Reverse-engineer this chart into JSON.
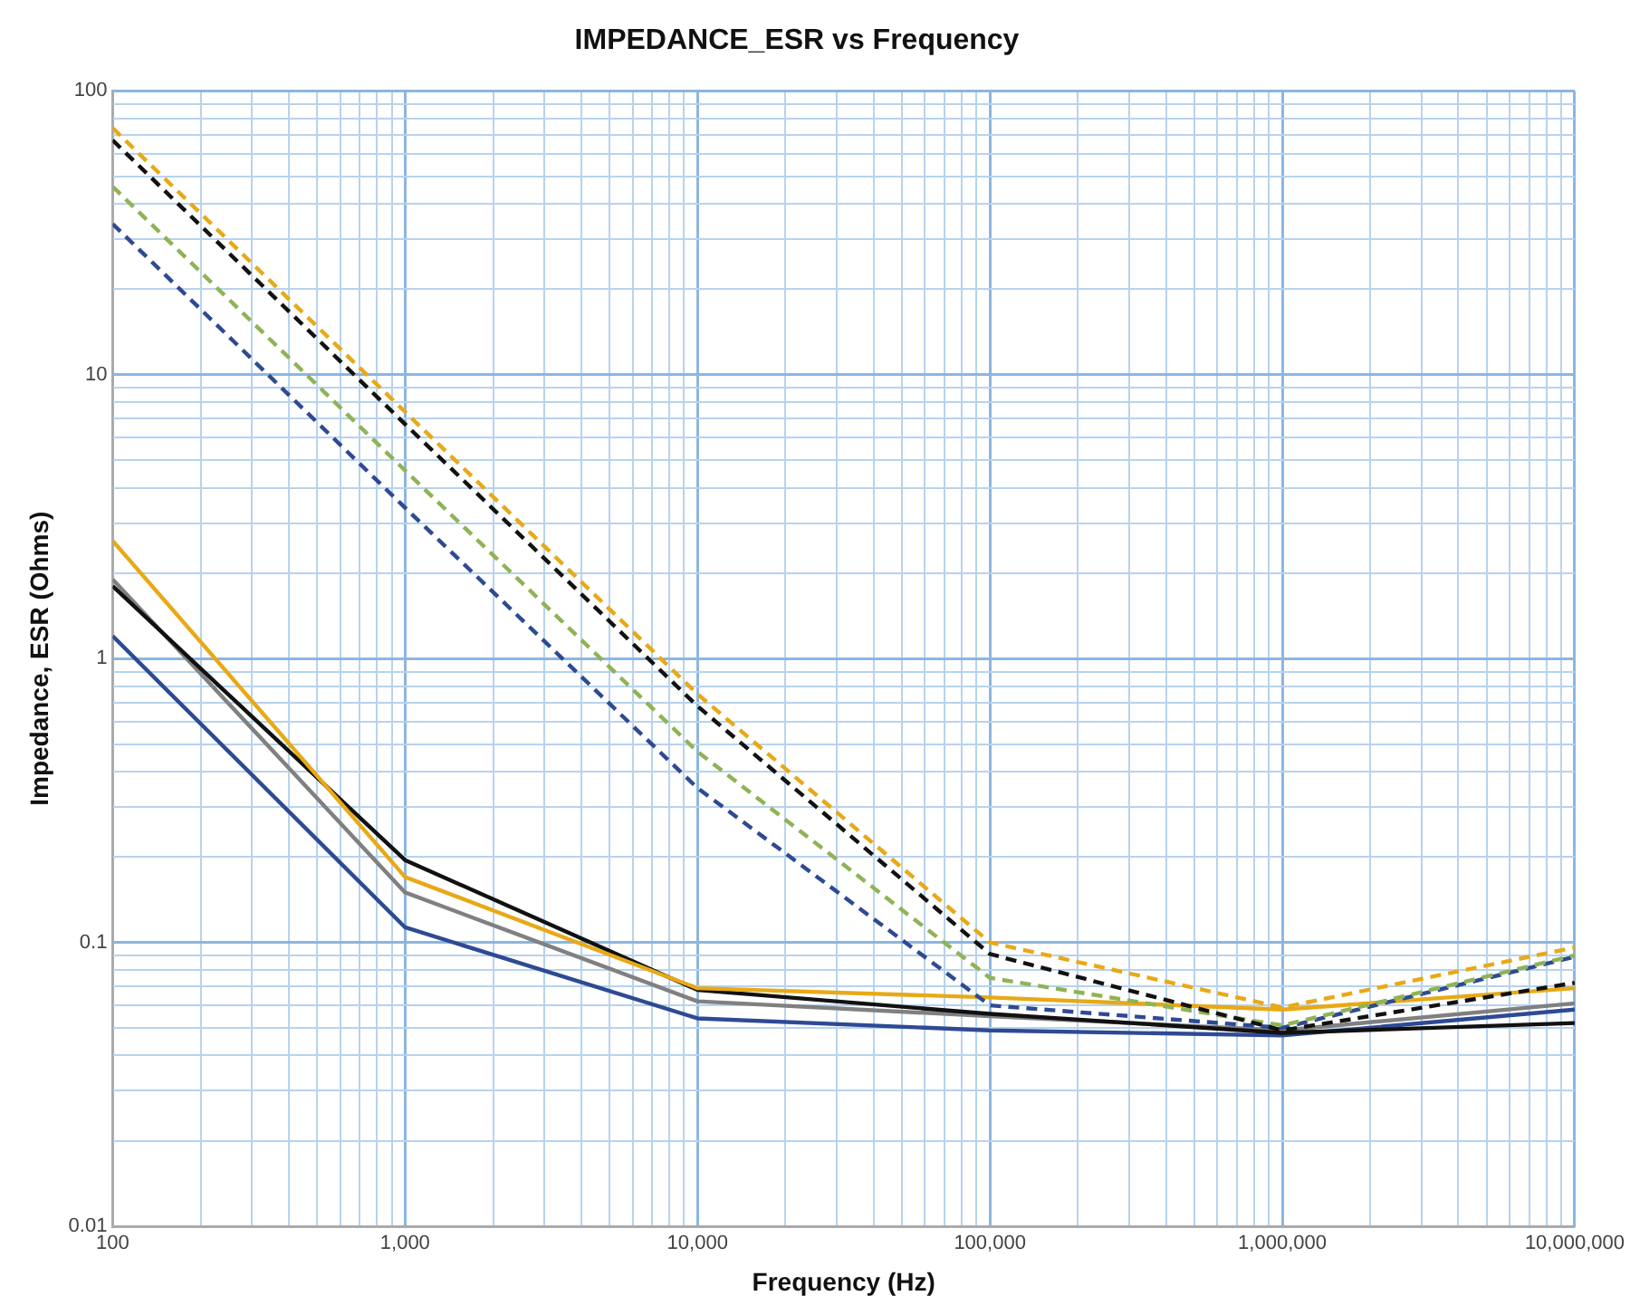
{
  "chart_data": {
    "type": "line",
    "title": "IMPEDANCE_ESR vs Frequency",
    "xlabel": "Frequency (Hz)",
    "ylabel": "Impedance, ESR (Ohms)",
    "log": "xy",
    "grid": true,
    "legend": false,
    "marker": "none",
    "x": [
      100,
      1000,
      10000,
      100000,
      1000000,
      10000000
    ],
    "xlim": [
      100,
      10000000
    ],
    "ylim": [
      0.01,
      100
    ],
    "xticks": [
      100,
      {
        "value": 200,
        "label": null
      },
      {
        "value": 300,
        "label": null
      },
      {
        "value": 400,
        "label": null
      },
      {
        "value": 500,
        "label": null
      },
      {
        "value": 600,
        "label": null
      },
      {
        "value": 700,
        "label": null
      },
      {
        "value": 800,
        "label": null
      },
      {
        "value": 900,
        "label": null
      },
      {
        "value": 1000,
        "label": "1,000"
      },
      {
        "value": 2000,
        "label": null
      },
      {
        "value": 3000,
        "label": null
      },
      {
        "value": 4000,
        "label": null
      },
      {
        "value": 5000,
        "label": null
      },
      {
        "value": 6000,
        "label": null
      },
      {
        "value": 7000,
        "label": null
      },
      {
        "value": 8000,
        "label": null
      },
      {
        "value": 9000,
        "label": null
      },
      {
        "value": 10000,
        "label": "10,000"
      },
      {
        "value": 20000,
        "label": null
      },
      {
        "value": 30000,
        "label": null
      },
      {
        "value": 40000,
        "label": null
      },
      {
        "value": 50000,
        "label": null
      },
      {
        "value": 60000,
        "label": null
      },
      {
        "value": 70000,
        "label": null
      },
      {
        "value": 80000,
        "label": null
      },
      {
        "value": 90000,
        "label": null
      },
      {
        "value": 100000,
        "label": "100,000"
      },
      {
        "value": 200000,
        "label": null
      },
      {
        "value": 300000,
        "label": null
      },
      {
        "value": 400000,
        "label": null
      },
      {
        "value": 500000,
        "label": null
      },
      {
        "value": 600000,
        "label": null
      },
      {
        "value": 700000,
        "label": null
      },
      {
        "value": 800000,
        "label": null
      },
      {
        "value": 900000,
        "label": null
      },
      {
        "value": 1000000,
        "label": "1,000,000"
      },
      {
        "value": 2000000,
        "label": null
      },
      {
        "value": 3000000,
        "label": null
      },
      {
        "value": 4000000,
        "label": null
      },
      {
        "value": 5000000,
        "label": null
      },
      {
        "value": 6000000,
        "label": null
      },
      {
        "value": 7000000,
        "label": null
      },
      {
        "value": 8000000,
        "label": null
      },
      {
        "value": 9000000,
        "label": null
      },
      {
        "value": 10000000,
        "label": "10,000,000"
      }
    ],
    "yticks": [
      0.01,
      {
        "value": 0.02,
        "label": null
      },
      {
        "value": 0.03,
        "label": null
      },
      {
        "value": 0.04,
        "label": null
      },
      {
        "value": 0.05,
        "label": null
      },
      {
        "value": 0.06,
        "label": null
      },
      {
        "value": 0.07,
        "label": null
      },
      {
        "value": 0.08,
        "label": null
      },
      {
        "value": 0.09,
        "label": null
      },
      0.1,
      {
        "value": 0.2,
        "label": null
      },
      {
        "value": 0.3,
        "label": null
      },
      {
        "value": 0.4,
        "label": null
      },
      {
        "value": 0.5,
        "label": null
      },
      {
        "value": 0.6,
        "label": null
      },
      {
        "value": 0.7,
        "label": null
      },
      {
        "value": 0.8,
        "label": null
      },
      {
        "value": 0.9,
        "label": null
      },
      1,
      {
        "value": 2,
        "label": null
      },
      {
        "value": 3,
        "label": null
      },
      {
        "value": 4,
        "label": null
      },
      {
        "value": 5,
        "label": null
      },
      {
        "value": 6,
        "label": null
      },
      {
        "value": 7,
        "label": null
      },
      {
        "value": 8,
        "label": null
      },
      {
        "value": 9,
        "label": null
      },
      10,
      {
        "value": 20,
        "label": null
      },
      {
        "value": 30,
        "label": null
      },
      {
        "value": 40,
        "label": null
      },
      {
        "value": 50,
        "label": null
      },
      {
        "value": 60,
        "label": null
      },
      {
        "value": 70,
        "label": null
      },
      {
        "value": 80,
        "label": null
      },
      {
        "value": 90,
        "label": null
      },
      100
    ],
    "series": [
      {
        "color": "#e8a917",
        "line_style": "dashed",
        "values": [
          74,
          7.4,
          0.75,
          0.1,
          0.059,
          0.096
        ]
      },
      {
        "color": "#111111",
        "line_style": "dashed",
        "values": [
          67,
          6.7,
          0.68,
          0.091,
          0.049,
          0.072
        ]
      },
      {
        "color": "#8fb356",
        "line_style": "dashed",
        "values": [
          46,
          4.6,
          0.47,
          0.075,
          0.051,
          0.09
        ]
      },
      {
        "color": "#2e4a94",
        "line_style": "dashed",
        "values": [
          34,
          3.4,
          0.35,
          0.06,
          0.05,
          0.089
        ]
      },
      {
        "color": "#e8a917",
        "line_style": "solid",
        "values": [
          2.6,
          0.17,
          0.069,
          0.064,
          0.058,
          0.069
        ]
      },
      {
        "color": "#111111",
        "line_style": "solid",
        "values": [
          1.8,
          0.195,
          0.068,
          0.056,
          0.048,
          0.052
        ]
      },
      {
        "color": "#808080",
        "line_style": "solid",
        "values": [
          1.9,
          0.15,
          0.062,
          0.055,
          0.049,
          0.061
        ]
      },
      {
        "color": "#2e4a94",
        "line_style": "solid",
        "values": [
          1.2,
          0.113,
          0.054,
          0.049,
          0.047,
          0.058
        ]
      }
    ]
  }
}
